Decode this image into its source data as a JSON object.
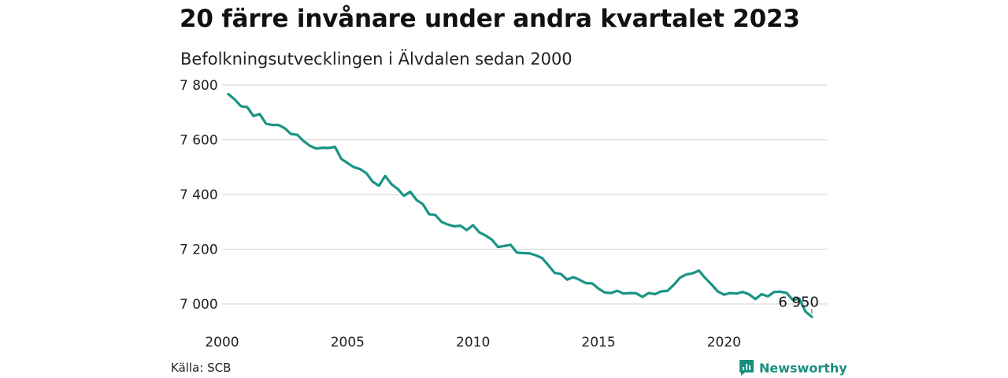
{
  "header": {
    "title": "20 färre invånare under andra kvartalet 2023",
    "subtitle": "Befolkningsutvecklingen i Älvdalen sedan 2000"
  },
  "footer": {
    "source": "Källa: SCB",
    "brand": "Newsworthy"
  },
  "colors": {
    "line": "#1a9484",
    "grid": "#d9d9d9",
    "brand": "#1a8f7e"
  },
  "chart_data": {
    "type": "line",
    "title": "20 färre invånare under andra kvartalet 2023",
    "subtitle": "Befolkningsutvecklingen i Älvdalen sedan 2000",
    "xlim": [
      2000,
      2024.1
    ],
    "ylim": [
      6900,
      7800
    ],
    "xticks": [
      2000,
      2005,
      2010,
      2015,
      2020
    ],
    "yticks": [
      7000,
      7200,
      7400,
      7600,
      7800
    ],
    "ytick_labels": [
      "7 000",
      "7 200",
      "7 400",
      "7 600",
      "7 800"
    ],
    "grid": true,
    "end_label": "6 950",
    "series": [
      {
        "x": [
          2000.25,
          2000.5,
          2000.75,
          2001.0,
          2001.25,
          2001.5,
          2001.75,
          2002.0,
          2002.25,
          2002.5,
          2002.75,
          2003.0,
          2003.25,
          2003.5,
          2003.75,
          2004.0,
          2004.25,
          2004.5,
          2004.75,
          2005.0,
          2005.25,
          2005.5,
          2005.75,
          2006.0,
          2006.25,
          2006.5,
          2006.75,
          2007.0,
          2007.25,
          2007.5,
          2007.75,
          2008.0,
          2008.25,
          2008.5,
          2008.75,
          2009.0,
          2009.25,
          2009.5,
          2009.75,
          2010.0,
          2010.25,
          2010.5,
          2010.75,
          2011.0,
          2011.25,
          2011.5,
          2011.75,
          2012.0,
          2012.25,
          2012.5,
          2012.75,
          2013.0,
          2013.25,
          2013.5,
          2013.75,
          2014.0,
          2014.25,
          2014.5,
          2014.75,
          2015.0,
          2015.25,
          2015.5,
          2015.75,
          2016.0,
          2016.25,
          2016.5,
          2016.75,
          2017.0,
          2017.25,
          2017.5,
          2017.75,
          2018.0,
          2018.25,
          2018.5,
          2018.75,
          2019.0,
          2019.25,
          2019.5,
          2019.75,
          2020.0,
          2020.25,
          2020.5,
          2020.75,
          2021.0,
          2021.25,
          2021.5,
          2021.75,
          2022.0,
          2022.25,
          2022.5,
          2022.75,
          2023.0,
          2023.25,
          2023.5
        ],
        "values": [
          7767,
          7748,
          7723,
          7719,
          7687,
          7694,
          7659,
          7654,
          7654,
          7642,
          7621,
          7618,
          7595,
          7578,
          7568,
          7571,
          7570,
          7574,
          7530,
          7515,
          7500,
          7493,
          7478,
          7447,
          7432,
          7468,
          7438,
          7420,
          7395,
          7410,
          7380,
          7365,
          7328,
          7325,
          7300,
          7290,
          7284,
          7286,
          7270,
          7288,
          7262,
          7250,
          7235,
          7208,
          7212,
          7216,
          7188,
          7186,
          7185,
          7178,
          7168,
          7142,
          7114,
          7110,
          7089,
          7098,
          7088,
          7076,
          7075,
          7056,
          7042,
          7040,
          7048,
          7038,
          7040,
          7039,
          7026,
          7040,
          7036,
          7046,
          7048,
          7070,
          7096,
          7108,
          7112,
          7122,
          7095,
          7072,
          7046,
          7034,
          7040,
          7038,
          7044,
          7035,
          7018,
          7036,
          7028,
          7044,
          7045,
          7040,
          7014,
          7020,
          6972,
          6953
        ]
      }
    ]
  }
}
